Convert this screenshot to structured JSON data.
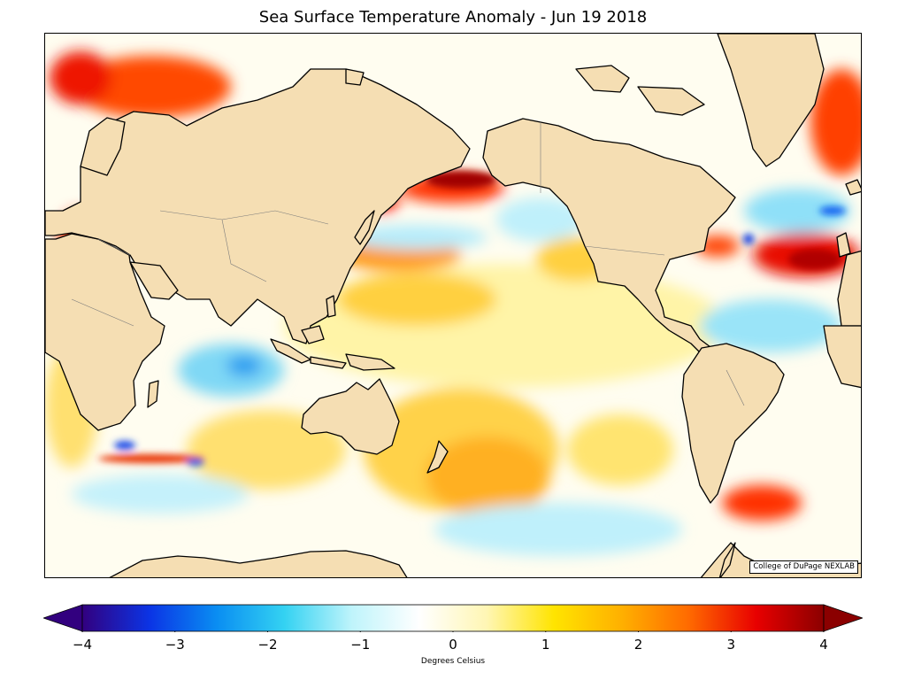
{
  "title": "Sea Surface Temperature Anomaly - Jun 19 2018",
  "credit": "College of DuPage NEXLAB",
  "colorbar": {
    "label": "Degrees Celsius",
    "min": -4,
    "max": 4,
    "extend": "both",
    "ticks": [
      "−4",
      "−3",
      "−2",
      "−1",
      "0",
      "1",
      "2",
      "3",
      "4"
    ],
    "tick_values": [
      -4,
      -3,
      -2,
      -1,
      0,
      1,
      2,
      3,
      4
    ],
    "colors": [
      "#32007f",
      "#0b34e5",
      "#0a8ef2",
      "#34d2f2",
      "#bff4fb",
      "#ffffff",
      "#fff6b4",
      "#ffe400",
      "#ffb000",
      "#ff6a00",
      "#e80000",
      "#8b0000"
    ]
  },
  "colors": {
    "land": "#f5deb3",
    "coast": "#000000",
    "ocean_neutral": "#fffef6"
  }
}
